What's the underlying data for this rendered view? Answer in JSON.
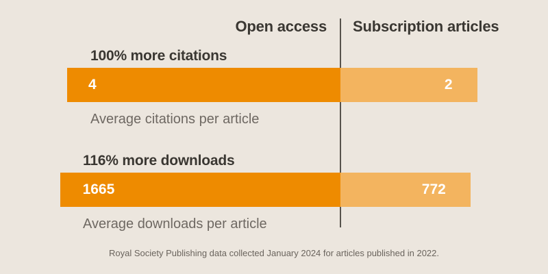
{
  "chart_data": {
    "type": "bar",
    "orientation": "horizontal",
    "columns": [
      "Open access",
      "Subscription articles"
    ],
    "rows": [
      {
        "highlight": "100% more citations",
        "caption": "Average citations per article",
        "values": {
          "open_access": 4,
          "subscription": 2
        }
      },
      {
        "highlight": "116% more downloads",
        "caption": "Average downloads per article",
        "values": {
          "open_access": 1665,
          "subscription": 772
        }
      }
    ],
    "footnote": "Royal Society Publishing data collected January 2024 for articles published in 2022.",
    "legend_position": "top",
    "grid": false,
    "colors": {
      "open_access_bar": "#ee8b00",
      "subscription_bar": "#f3b45f",
      "background": "#ece6de",
      "heading_text": "#3a3732",
      "caption_text": "#6e6862",
      "footnote_text": "#6a645d",
      "divider": "#56524c",
      "bar_value_text": "#ffffff"
    }
  }
}
